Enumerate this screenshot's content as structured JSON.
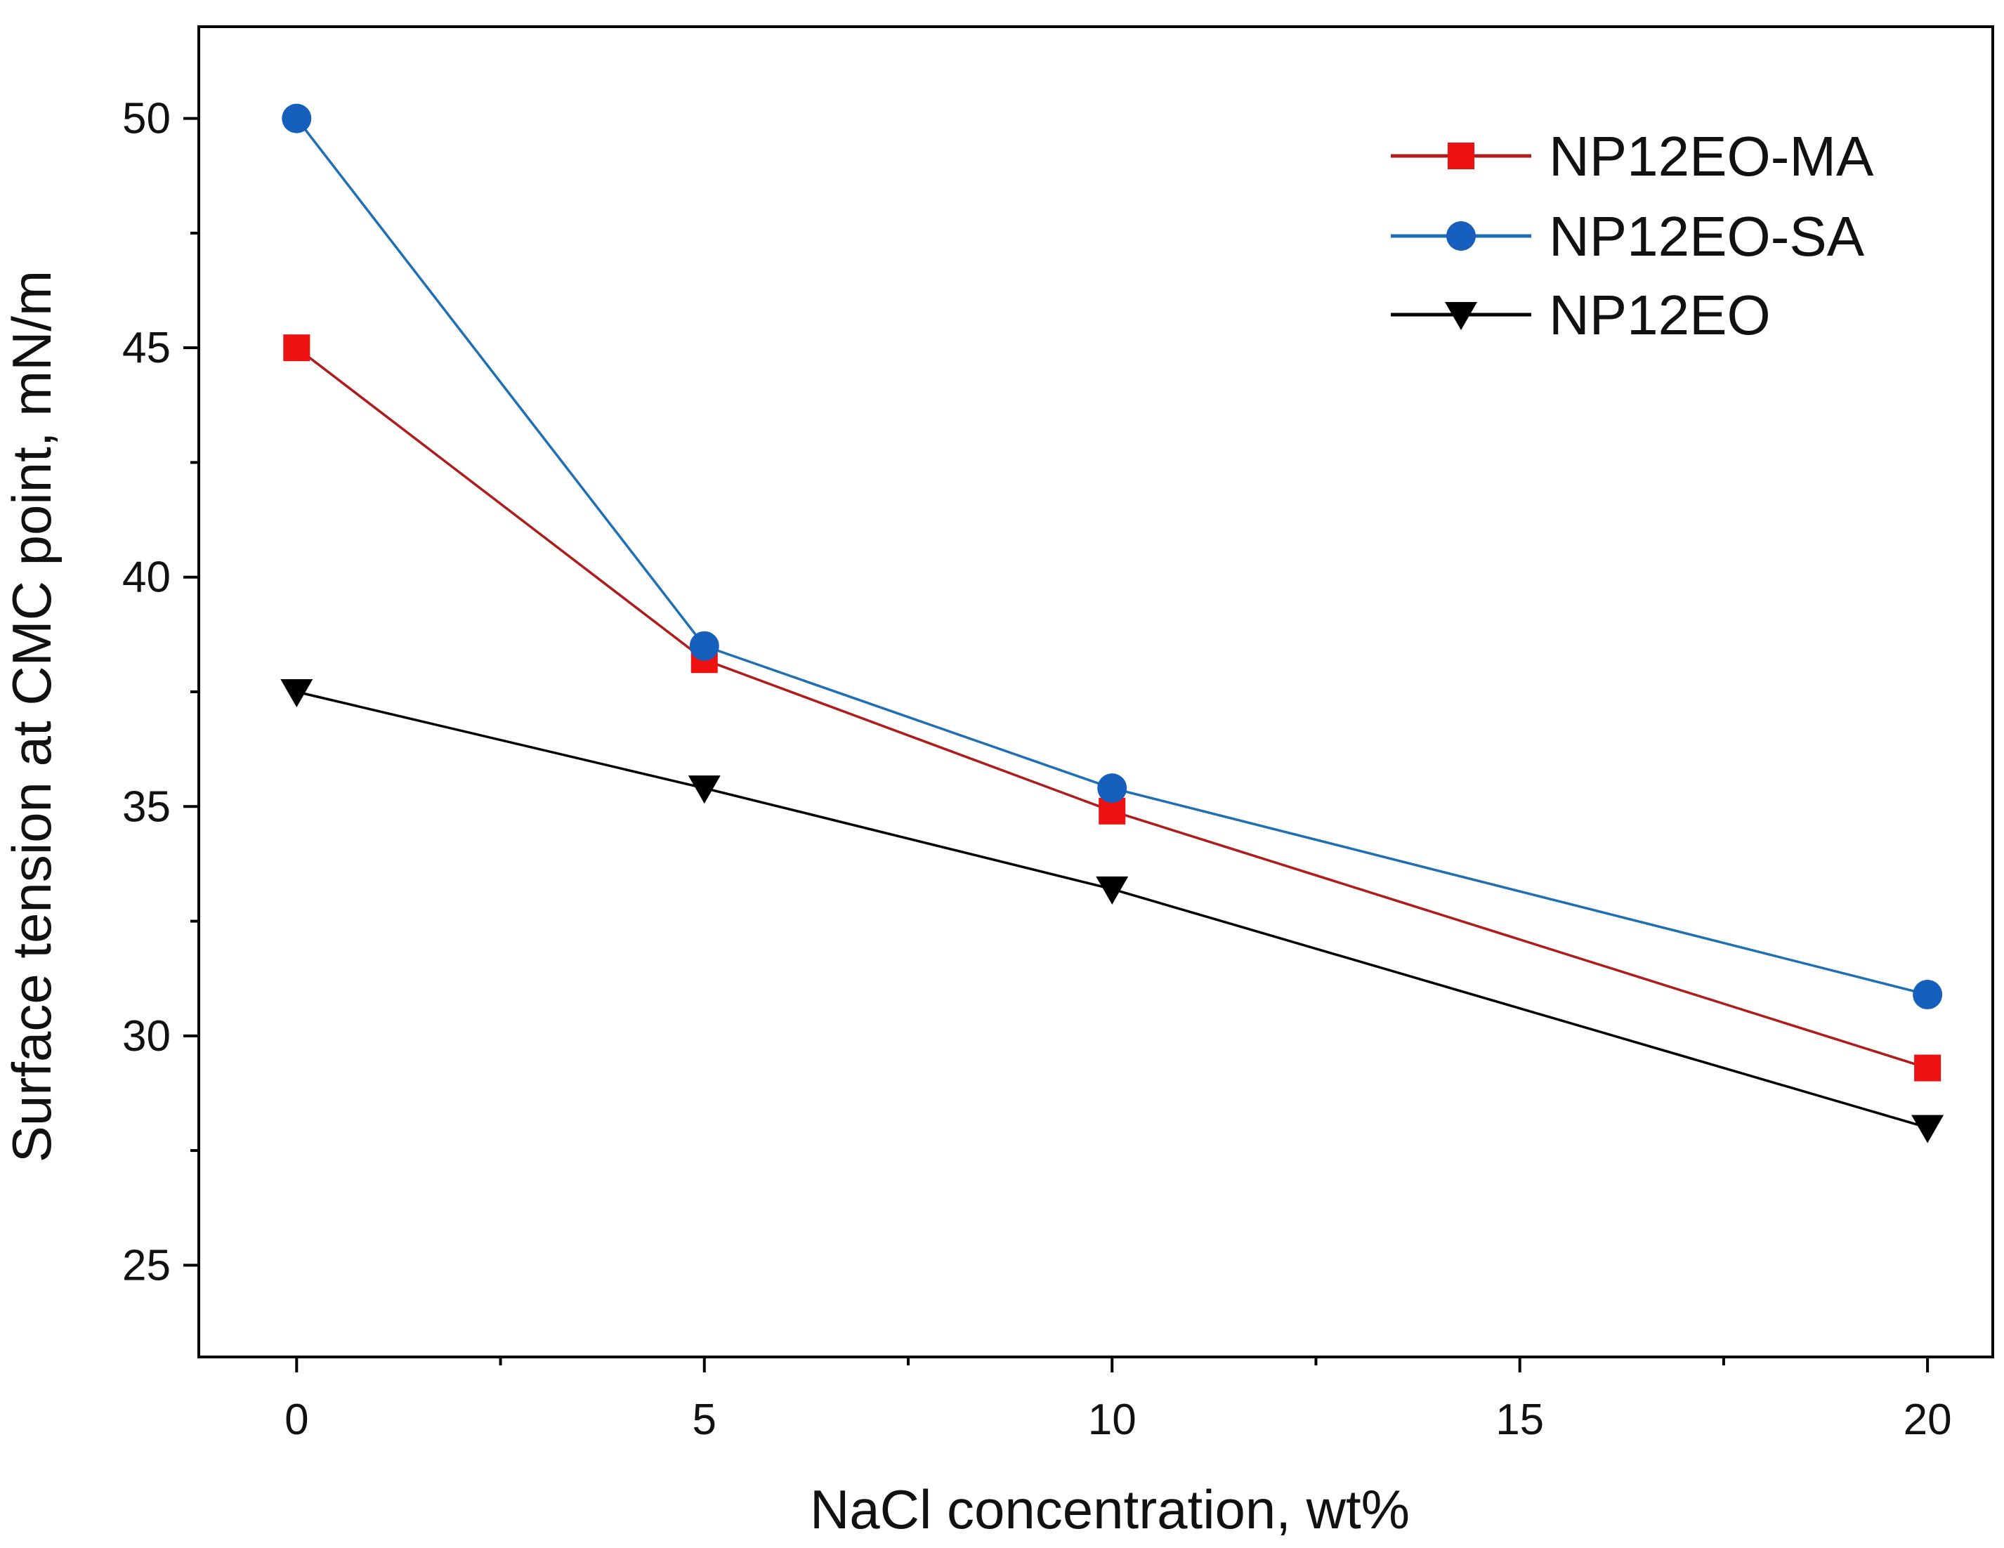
{
  "chart_data": {
    "type": "line",
    "title": "",
    "xlabel": "NaCl concentration, wt%",
    "ylabel": "Surface tension at CMC point, mN/m",
    "xlim": [
      -1.2,
      20.8
    ],
    "ylim": [
      23,
      52
    ],
    "xticks": [
      0,
      5,
      10,
      15,
      20
    ],
    "xtick_labels": [
      "0",
      "5",
      "10",
      "15",
      "20"
    ],
    "yticks": [
      25,
      30,
      35,
      40,
      45,
      50
    ],
    "ytick_labels": [
      "25",
      "30",
      "35",
      "40",
      "45",
      "50"
    ],
    "x": [
      0,
      5,
      10,
      20
    ],
    "legend_position": "top-right",
    "grid": false,
    "series": [
      {
        "name": "NP12EO-MA",
        "values": [
          45.0,
          38.2,
          34.9,
          29.3
        ],
        "color": "#b01c1c",
        "marker_color": "#ee1111",
        "marker": "square"
      },
      {
        "name": "NP12EO-SA",
        "values": [
          50.0,
          38.5,
          35.4,
          30.9
        ],
        "color": "#1f6fb5",
        "marker_color": "#1560bd",
        "marker": "circle"
      },
      {
        "name": "NP12EO",
        "values": [
          37.5,
          35.4,
          33.2,
          28.0
        ],
        "color": "#000000",
        "marker_color": "#000000",
        "marker": "triangle-down"
      }
    ]
  }
}
